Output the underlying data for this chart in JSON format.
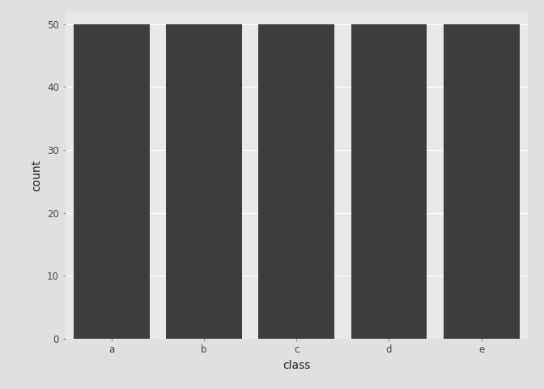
{
  "categories": [
    "a",
    "b",
    "c",
    "d",
    "e"
  ],
  "values": [
    50,
    50,
    50,
    50,
    50
  ],
  "bar_color": "#3d3d3d",
  "xlabel": "class",
  "ylabel": "count",
  "ylim": [
    0,
    52
  ],
  "yticks": [
    0,
    10,
    20,
    30,
    40,
    50
  ],
  "panel_bg": "#e8e8e8",
  "outer_bg": "#e0e0e0",
  "grid_color": "#ffffff",
  "bar_width": 0.82,
  "axis_label_fontsize": 10,
  "tick_fontsize": 8.5
}
